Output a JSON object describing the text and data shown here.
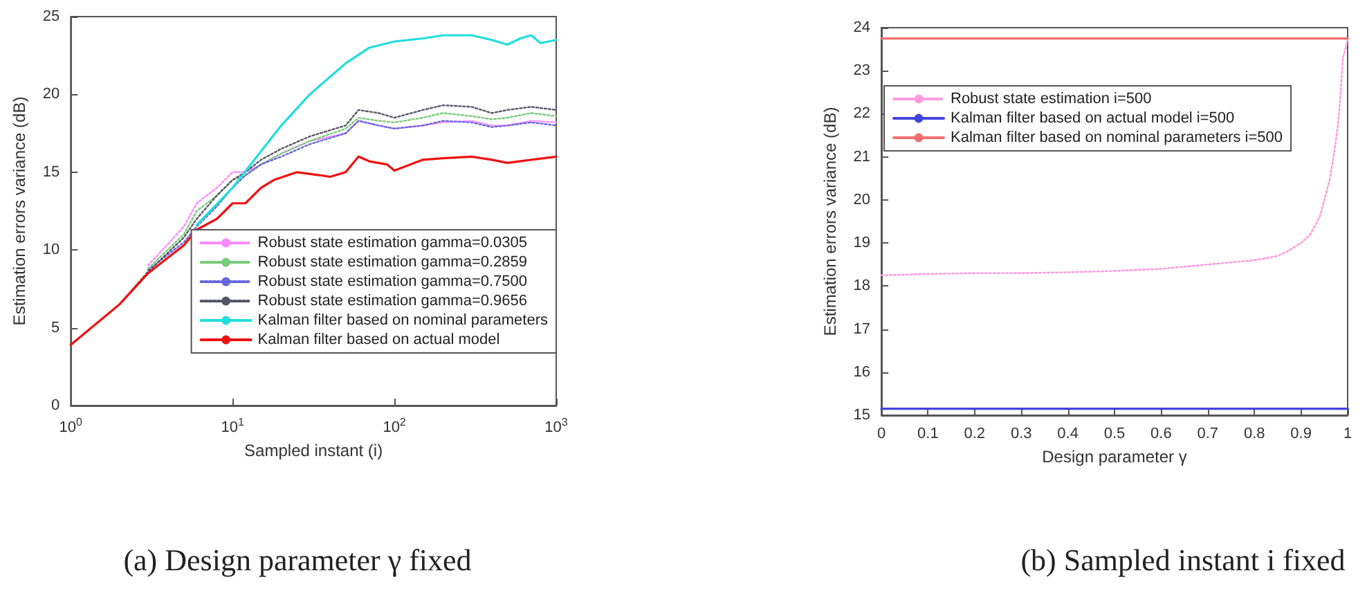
{
  "chart_data": [
    {
      "type": "line",
      "xlabel": "Sampled instant (i)",
      "ylabel": "Estimation errors variance (dB)",
      "log": "x",
      "xlim": [
        1,
        1000
      ],
      "xticks": [
        {
          "value": 1,
          "label": "10$^{0}$"
        },
        {
          "value": 10,
          "label": "10$^{1}$"
        },
        {
          "value": 100,
          "label": "10$^{2}$"
        },
        {
          "value": 1000,
          "label": "10$^{3}$"
        }
      ],
      "ylim": [
        0,
        25
      ],
      "yticks": [
        0,
        5,
        10,
        15,
        20,
        25
      ],
      "grid": false,
      "legend": "bottom right",
      "marker": "none",
      "annotations": [
        "(a) Design parameter γ fixed"
      ],
      "series": [
        {
          "name": "Robust state estimation gamma=0.0305",
          "color": "#ff88ff",
          "line_style": "dotted",
          "x": [
            3,
            5,
            6,
            8,
            10,
            12,
            15,
            20,
            30,
            50,
            60,
            80,
            100,
            150,
            200,
            300,
            400,
            500,
            700,
            1000
          ],
          "values": [
            9,
            11.5,
            13,
            14,
            15,
            15,
            15.5,
            16.2,
            17,
            17.5,
            18.3,
            18,
            17.8,
            18,
            18.2,
            18.3,
            18,
            18,
            18.3,
            18.2
          ]
        },
        {
          "name": "Robust state estimation gamma=0.2859",
          "color": "#77cc77",
          "line_style": "dotted",
          "x": [
            3,
            5,
            6,
            8,
            10,
            12,
            15,
            20,
            30,
            50,
            60,
            80,
            100,
            150,
            200,
            300,
            400,
            500,
            700,
            1000
          ],
          "values": [
            8.8,
            11,
            12.5,
            13.5,
            14.5,
            14.8,
            15.5,
            16.2,
            17,
            17.8,
            18.5,
            18.3,
            18.2,
            18.5,
            18.8,
            18.6,
            18.4,
            18.5,
            18.8,
            18.6
          ]
        },
        {
          "name": "Robust state estimation gamma=0.7500",
          "color": "#6666dd",
          "line_style": "dotted",
          "x": [
            3,
            5,
            6,
            8,
            10,
            12,
            15,
            20,
            30,
            50,
            60,
            80,
            100,
            150,
            200,
            300,
            400,
            500,
            700,
            1000
          ],
          "values": [
            8.7,
            10.5,
            11.5,
            12.8,
            14,
            14.8,
            15.5,
            16,
            16.8,
            17.5,
            18.3,
            18,
            17.8,
            18,
            18.3,
            18.2,
            17.9,
            18,
            18.2,
            18
          ]
        },
        {
          "name": "Robust state estimation gamma=0.9656",
          "color": "#555566",
          "line_style": "dotted",
          "x": [
            1,
            2,
            3,
            5,
            6,
            8,
            10,
            12,
            15,
            20,
            30,
            50,
            60,
            80,
            100,
            150,
            200,
            300,
            400,
            500,
            700,
            1000
          ],
          "values": [
            3.9,
            6.5,
            8.6,
            10.8,
            12,
            13.5,
            14.5,
            15,
            15.8,
            16.5,
            17.3,
            18,
            19,
            18.8,
            18.5,
            19,
            19.3,
            19.2,
            18.8,
            19,
            19.2,
            19
          ]
        },
        {
          "name": "Kalman filter based on nominal parameters",
          "color": "#22dddd",
          "line_style": "solid",
          "x": [
            6,
            10,
            20,
            30,
            50,
            70,
            100,
            150,
            200,
            300,
            400,
            500,
            600,
            700,
            800,
            1000
          ],
          "values": [
            11.6,
            14,
            18,
            20,
            22,
            23,
            23.4,
            23.6,
            23.8,
            23.8,
            23.5,
            23.2,
            23.6,
            23.8,
            23.3,
            23.5
          ]
        },
        {
          "name": "Kalman filter based on actual model",
          "color": "#ee1111",
          "line_style": "solid",
          "x": [
            1,
            2,
            3,
            5,
            6,
            8,
            10,
            12,
            15,
            18,
            25,
            35,
            40,
            50,
            60,
            70,
            90,
            100,
            150,
            200,
            300,
            400,
            500,
            700,
            1000
          ],
          "values": [
            3.9,
            6.5,
            8.5,
            10.3,
            11.3,
            12,
            13,
            13,
            14,
            14.5,
            15,
            14.8,
            14.7,
            15,
            16,
            15.7,
            15.5,
            15.1,
            15.8,
            15.9,
            16,
            15.8,
            15.6,
            15.8,
            16
          ]
        }
      ]
    },
    {
      "type": "line",
      "xlabel": "Design parameter γ",
      "ylabel": "Estimation errors variance (dB)",
      "xlim": [
        0,
        1
      ],
      "xticks": [
        0,
        0.1,
        0.2,
        0.3,
        0.4,
        0.5,
        0.6,
        0.7,
        0.8,
        0.9,
        1
      ],
      "ylim": [
        15,
        24
      ],
      "yticks": [
        15,
        16,
        17,
        18,
        19,
        20,
        21,
        22,
        23,
        24
      ],
      "grid": false,
      "legend": "top left",
      "marker": "none",
      "annotations": [
        "(b) Sampled instant i fixed"
      ],
      "series": [
        {
          "name": "Robust state estimation i=500",
          "color": "#ff99dd",
          "line_style": "dotted",
          "x": [
            0,
            0.1,
            0.2,
            0.3,
            0.4,
            0.5,
            0.6,
            0.7,
            0.8,
            0.85,
            0.87,
            0.9,
            0.92,
            0.94,
            0.95,
            0.96,
            0.97,
            0.98,
            0.985,
            0.99,
            1
          ],
          "values": [
            18.25,
            18.28,
            18.3,
            18.3,
            18.32,
            18.35,
            18.4,
            18.5,
            18.6,
            18.7,
            18.8,
            19,
            19.2,
            19.6,
            20,
            20.4,
            21,
            21.8,
            22.5,
            23.3,
            23.7
          ]
        },
        {
          "name": "Kalman filter based on actual model i=500",
          "color": "#4444dd",
          "line_style": "solid",
          "x": [
            0,
            1
          ],
          "values": [
            15.15,
            15.15
          ]
        },
        {
          "name": "Kalman filter based on nominal parameters i=500",
          "color": "#f07070",
          "line_style": "solid",
          "x": [
            0,
            1
          ],
          "values": [
            23.75,
            23.75
          ]
        }
      ]
    }
  ]
}
